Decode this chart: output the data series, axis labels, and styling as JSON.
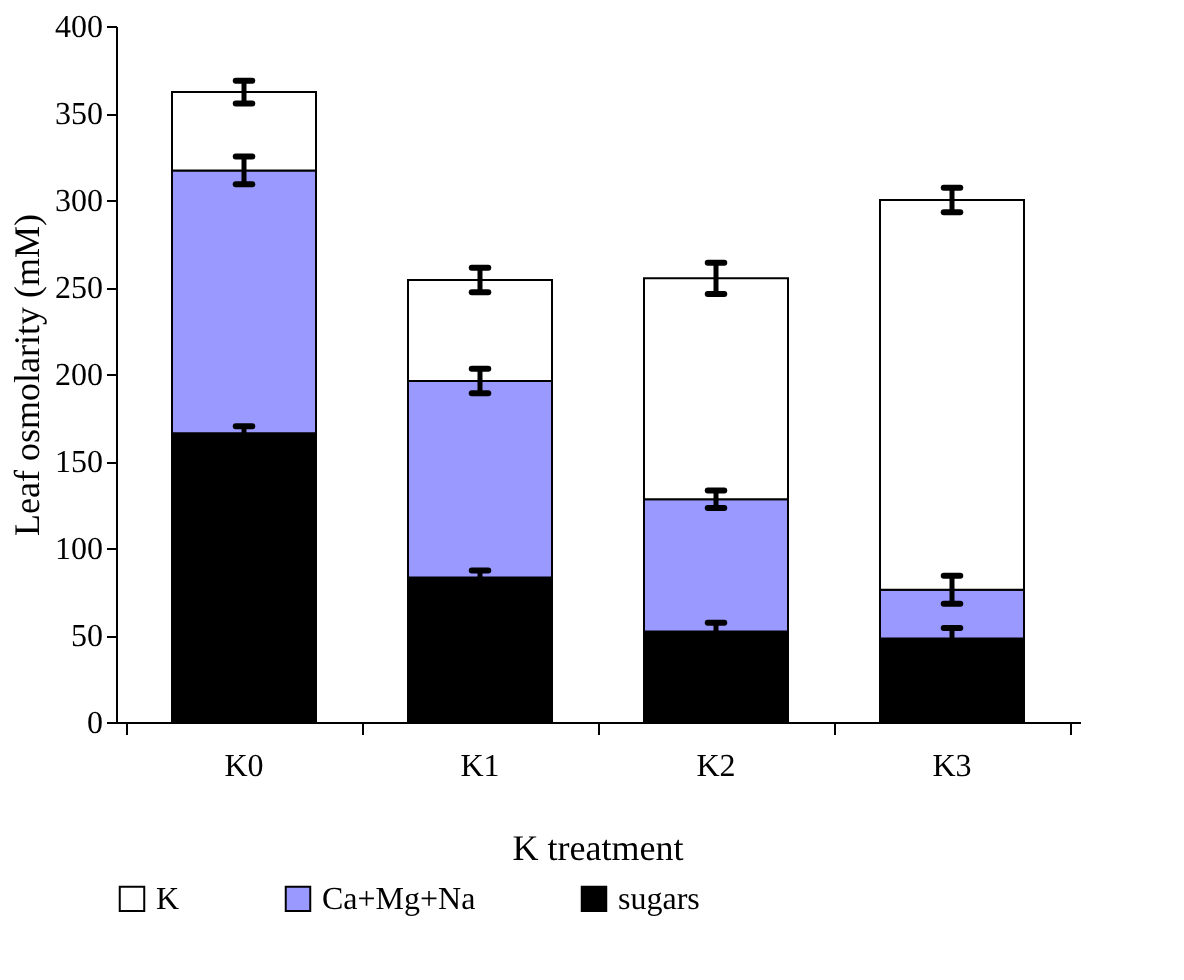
{
  "chart_data": {
    "type": "bar",
    "stacked": true,
    "xlabel": "K treatment",
    "ylabel": "Leaf osmolarity (mM)",
    "categories": [
      "K0",
      "K1",
      "K2",
      "K3"
    ],
    "series": [
      {
        "name": "sugars",
        "color": "#000000",
        "values": [
          166,
          83,
          52,
          48
        ],
        "errors": [
          4,
          4,
          5,
          6
        ]
      },
      {
        "name": "Ca+Mg+Na",
        "color": "#9999ff",
        "values": [
          151,
          113,
          76,
          28
        ],
        "errors": [
          8,
          7,
          5,
          8
        ]
      },
      {
        "name": "K",
        "color": "#ffffff",
        "values": [
          45,
          58,
          127,
          224
        ],
        "errors": [
          6.5,
          7,
          9,
          7
        ]
      }
    ],
    "ylim": [
      0,
      400
    ],
    "yticks": [
      0,
      50,
      100,
      150,
      200,
      250,
      300,
      350,
      400
    ],
    "grid": false,
    "legend": "bottom"
  }
}
